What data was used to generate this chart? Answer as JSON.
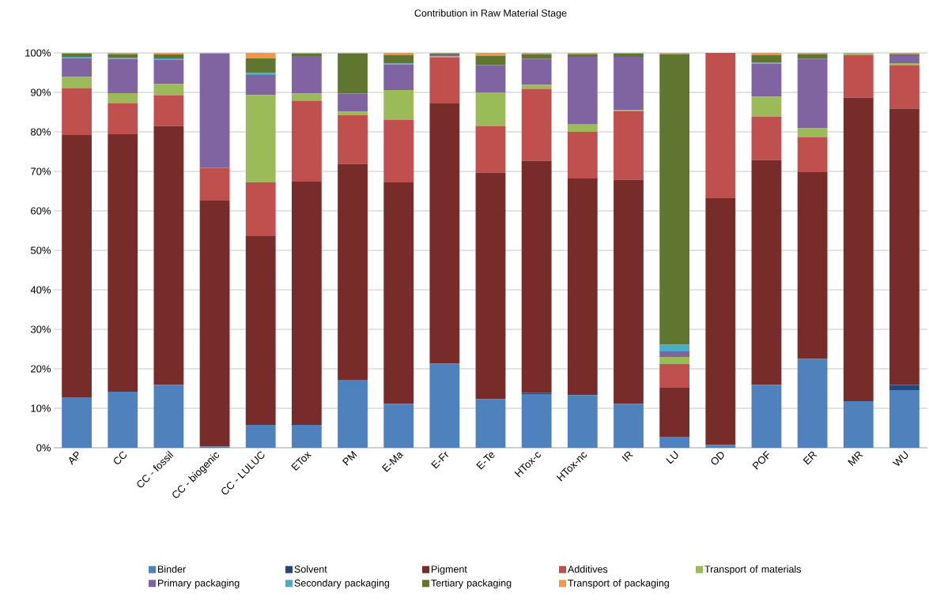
{
  "chart_data": {
    "type": "bar",
    "stacked": true,
    "title": "Contribution in Raw Material Stage",
    "categories": [
      "AP",
      "CC",
      "CC - fossil",
      "CC - biogenic",
      "CC - LULUC",
      "ETox",
      "PM",
      "E-Ma",
      "E-Fr",
      "E-Te",
      "HTox-c",
      "HTox-nc",
      "IR",
      "LU",
      "OD",
      "POF",
      "ER",
      "MR",
      "WU"
    ],
    "series": [
      {
        "name": "Binder",
        "color": "#4f81bd",
        "values": [
          12.8,
          14.2,
          15.9,
          0.3,
          5.8,
          5.8,
          17.2,
          11.1,
          21.3,
          12.3,
          13.6,
          13.3,
          11.1,
          2.8,
          0.7,
          15.9,
          22.5,
          11.8,
          14.6
        ]
      },
      {
        "name": "Solvent",
        "color": "#1f497d",
        "values": [
          0,
          0,
          0,
          0,
          0,
          0,
          0,
          0,
          0,
          0,
          0.3,
          0.3,
          0,
          0,
          0,
          0,
          0,
          0,
          1.3
        ]
      },
      {
        "name": "Pigment",
        "color": "#772c2a",
        "values": [
          66.4,
          65.2,
          65.6,
          62.3,
          47.8,
          61.6,
          54.7,
          56.1,
          65.9,
          57.4,
          58.8,
          54.6,
          56.8,
          12.4,
          62.5,
          57.0,
          47.3,
          76.9,
          70.0
        ]
      },
      {
        "name": "Additives",
        "color": "#c0504d",
        "values": [
          11.9,
          7.9,
          7.8,
          8.3,
          13.6,
          20.5,
          12.3,
          15.9,
          11.7,
          11.8,
          18.2,
          11.8,
          17.4,
          6.0,
          36.8,
          11.0,
          8.9,
          10.8,
          11.0
        ]
      },
      {
        "name": "Transport of materials",
        "color": "#9bbb59",
        "values": [
          2.8,
          2.5,
          2.8,
          0,
          22.1,
          1.8,
          0.9,
          7.5,
          0.2,
          8.5,
          1.0,
          2.0,
          0.2,
          1.8,
          0,
          5.0,
          2.2,
          0.2,
          0.5
        ]
      },
      {
        "name": "Primary packaging",
        "color": "#8064a2",
        "values": [
          4.8,
          8.7,
          6.2,
          29.0,
          5.1,
          9.5,
          4.6,
          6.5,
          0.5,
          6.9,
          6.6,
          17.0,
          13.5,
          1.4,
          0,
          8.4,
          17.6,
          0,
          2.0
        ]
      },
      {
        "name": "Secondary packaging",
        "color": "#4bacc6",
        "values": [
          0.3,
          0.2,
          0.3,
          0,
          0.5,
          0,
          0,
          0.2,
          0,
          0,
          0,
          0,
          0,
          1.7,
          0,
          0.2,
          0,
          0,
          0
        ]
      },
      {
        "name": "Tertiary packaging",
        "color": "#5f7530",
        "values": [
          0.8,
          1.0,
          1.0,
          0,
          3.7,
          0.6,
          10.2,
          2.2,
          0.3,
          2.4,
          1.2,
          0.7,
          0.8,
          73.6,
          0,
          2.0,
          1.2,
          0.1,
          0.3
        ]
      },
      {
        "name": "Transport of packaging",
        "color": "#f79646",
        "values": [
          0.2,
          0.3,
          0.4,
          0,
          1.4,
          0.2,
          0,
          0.5,
          0,
          0.7,
          0.3,
          0.3,
          0.2,
          0.3,
          0,
          0.5,
          0.3,
          0.2,
          0.3
        ]
      }
    ],
    "ylim": [
      0,
      100
    ],
    "yticks": [
      {
        "value": 0,
        "label": "0%"
      },
      {
        "value": 10,
        "label": "10%"
      },
      {
        "value": 20,
        "label": "20%"
      },
      {
        "value": 30,
        "label": "30%"
      },
      {
        "value": 40,
        "label": "40%"
      },
      {
        "value": 50,
        "label": "50%"
      },
      {
        "value": 60,
        "label": "60%"
      },
      {
        "value": 70,
        "label": "70%"
      },
      {
        "value": 80,
        "label": "80%"
      },
      {
        "value": 90,
        "label": "90%"
      },
      {
        "value": 100,
        "label": "100%"
      }
    ],
    "grid": "y",
    "legend": "bottom"
  }
}
